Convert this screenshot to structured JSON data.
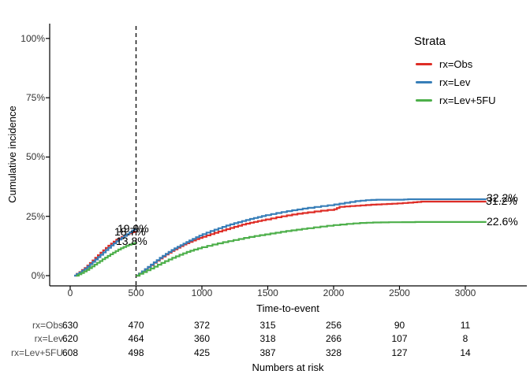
{
  "figure": {
    "y_axis_title": "Cumulative incidence",
    "x_axis_title": "Time-to-event",
    "legend": {
      "title": "Strata"
    }
  },
  "chart_data": {
    "type": "line",
    "subtype": "step-cumulative-incidence",
    "title": "",
    "xlabel": "Time-to-event",
    "ylabel": "Cumulative incidence",
    "x_ticks": [
      0,
      500,
      1000,
      1500,
      2000,
      2500,
      3000
    ],
    "x_tick_labels": [
      "0",
      "500",
      "1000",
      "1500",
      "2000",
      "2500",
      "3000"
    ],
    "y_ticks": [
      0,
      25,
      50,
      75,
      100
    ],
    "y_tick_labels": [
      "0%",
      "25%",
      "50%",
      "75%",
      "100%"
    ],
    "xlim": [
      -150,
      3480
    ],
    "ylim": [
      0,
      106
    ],
    "grid": false,
    "legend_position": "right-top",
    "vline": {
      "x": 500,
      "style": "dashed",
      "color": "#1a1a1a"
    },
    "series": [
      {
        "name": "rx=Obs",
        "color": "#DE2D26",
        "annotations": [
          {
            "time": 500,
            "label": "18.7%"
          },
          {
            "time": 3160,
            "label": "31.2%"
          }
        ],
        "segments": [
          [
            [
              30,
              0
            ],
            [
              70,
              1.5
            ],
            [
              110,
              3.2
            ],
            [
              150,
              5.3
            ],
            [
              190,
              7.5
            ],
            [
              230,
              9.7
            ],
            [
              270,
              11.7
            ],
            [
              310,
              13.5
            ],
            [
              350,
              15.1
            ],
            [
              390,
              16.3
            ],
            [
              430,
              17.4
            ],
            [
              470,
              18.3
            ],
            [
              500,
              18.7
            ]
          ],
          [
            [
              500,
              0
            ],
            [
              545,
              1.7
            ],
            [
              590,
              3.5
            ],
            [
              635,
              5.4
            ],
            [
              680,
              7.2
            ],
            [
              725,
              8.9
            ],
            [
              770,
              10.4
            ],
            [
              815,
              11.8
            ],
            [
              860,
              13.1
            ],
            [
              905,
              14.2
            ],
            [
              955,
              15.4
            ],
            [
              1005,
              16.4
            ],
            [
              1065,
              17.5
            ],
            [
              1125,
              18.6
            ],
            [
              1185,
              19.6
            ],
            [
              1245,
              20.6
            ],
            [
              1305,
              21.5
            ],
            [
              1365,
              22.3
            ],
            [
              1425,
              23.0
            ],
            [
              1485,
              23.7
            ],
            [
              1565,
              24.6
            ],
            [
              1645,
              25.4
            ],
            [
              1725,
              26.1
            ],
            [
              1805,
              26.7
            ],
            [
              1905,
              27.4
            ],
            [
              2005,
              28.0
            ],
            [
              2045,
              29.0
            ],
            [
              2125,
              29.3
            ],
            [
              2205,
              29.6
            ],
            [
              2285,
              29.9
            ],
            [
              2365,
              30.1
            ],
            [
              2445,
              30.3
            ],
            [
              2525,
              30.6
            ],
            [
              2605,
              30.9
            ],
            [
              2665,
              31.2
            ],
            [
              3160,
              31.2
            ]
          ]
        ]
      },
      {
        "name": "rx=Lev",
        "color": "#377EB8",
        "annotations": [
          {
            "time": 500,
            "label": "19.9%"
          },
          {
            "time": 3160,
            "label": "32.2%"
          }
        ],
        "segments": [
          [
            [
              30,
              0
            ],
            [
              70,
              1.3
            ],
            [
              110,
              2.9
            ],
            [
              150,
              4.8
            ],
            [
              190,
              6.8
            ],
            [
              230,
              8.8
            ],
            [
              270,
              10.8
            ],
            [
              310,
              12.7
            ],
            [
              350,
              14.5
            ],
            [
              390,
              16.0
            ],
            [
              430,
              17.5
            ],
            [
              470,
              19.0
            ],
            [
              500,
              19.9
            ]
          ],
          [
            [
              500,
              0
            ],
            [
              545,
              1.8
            ],
            [
              590,
              3.7
            ],
            [
              635,
              5.6
            ],
            [
              680,
              7.5
            ],
            [
              725,
              9.2
            ],
            [
              770,
              10.8
            ],
            [
              815,
              12.2
            ],
            [
              860,
              13.5
            ],
            [
              905,
              14.8
            ],
            [
              955,
              16.2
            ],
            [
              1005,
              17.5
            ],
            [
              1065,
              18.8
            ],
            [
              1125,
              20.0
            ],
            [
              1185,
              21.1
            ],
            [
              1245,
              22.1
            ],
            [
              1305,
              23.0
            ],
            [
              1365,
              23.9
            ],
            [
              1425,
              24.7
            ],
            [
              1485,
              25.5
            ],
            [
              1565,
              26.4
            ],
            [
              1645,
              27.2
            ],
            [
              1725,
              27.9
            ],
            [
              1805,
              28.6
            ],
            [
              1905,
              29.3
            ],
            [
              2005,
              30.0
            ],
            [
              2085,
              30.7
            ],
            [
              2165,
              31.4
            ],
            [
              2245,
              31.8
            ],
            [
              2325,
              32.0
            ],
            [
              2505,
              32.0
            ],
            [
              2565,
              32.2
            ],
            [
              3160,
              32.2
            ]
          ]
        ]
      },
      {
        "name": "rx=Lev+5FU",
        "color": "#4DAF4A",
        "annotations": [
          {
            "time": 500,
            "label": "13.8%"
          },
          {
            "time": 3160,
            "label": "22.6%"
          }
        ],
        "segments": [
          [
            [
              45,
              0
            ],
            [
              85,
              1.1
            ],
            [
              125,
              2.4
            ],
            [
              165,
              3.9
            ],
            [
              205,
              5.4
            ],
            [
              245,
              6.9
            ],
            [
              285,
              8.3
            ],
            [
              325,
              9.7
            ],
            [
              365,
              11.0
            ],
            [
              405,
              12.1
            ],
            [
              445,
              13.0
            ],
            [
              485,
              13.6
            ],
            [
              500,
              13.8
            ]
          ],
          [
            [
              500,
              0
            ],
            [
              555,
              1.5
            ],
            [
              610,
              3.0
            ],
            [
              665,
              4.6
            ],
            [
              720,
              6.1
            ],
            [
              775,
              7.5
            ],
            [
              830,
              8.8
            ],
            [
              885,
              10.0
            ],
            [
              940,
              11.0
            ],
            [
              1000,
              12.0
            ],
            [
              1080,
              13.1
            ],
            [
              1160,
              14.1
            ],
            [
              1240,
              15.0
            ],
            [
              1320,
              15.9
            ],
            [
              1400,
              16.7
            ],
            [
              1480,
              17.4
            ],
            [
              1560,
              18.1
            ],
            [
              1640,
              18.8
            ],
            [
              1720,
              19.4
            ],
            [
              1800,
              20.0
            ],
            [
              1900,
              20.7
            ],
            [
              2000,
              21.3
            ],
            [
              2100,
              21.8
            ],
            [
              2200,
              22.2
            ],
            [
              2300,
              22.4
            ],
            [
              2420,
              22.5
            ],
            [
              2620,
              22.6
            ],
            [
              3160,
              22.6
            ]
          ]
        ]
      }
    ],
    "risk_table": {
      "caption": "Numbers at risk",
      "times": [
        0,
        500,
        1000,
        1500,
        2000,
        2500,
        3000
      ],
      "rows": [
        {
          "label": "rx=Obs",
          "values": [
            "630",
            "470",
            "372",
            "315",
            "256",
            "90",
            "11"
          ]
        },
        {
          "label": "rx=Lev",
          "values": [
            "620",
            "464",
            "360",
            "318",
            "266",
            "107",
            "8"
          ]
        },
        {
          "label": "rx=Lev+5FU",
          "values": [
            "608",
            "498",
            "425",
            "387",
            "328",
            "127",
            "14"
          ]
        }
      ]
    }
  }
}
